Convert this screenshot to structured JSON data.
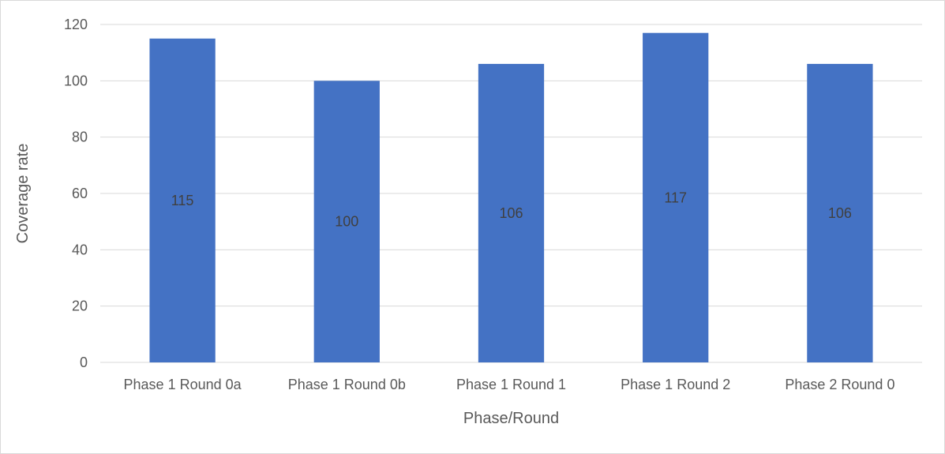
{
  "chart_data": {
    "type": "bar",
    "title": "",
    "xlabel": "Phase/Round",
    "ylabel": "Coverage rate",
    "categories": [
      "Phase 1 Round 0a",
      "Phase 1 Round 0b",
      "Phase 1 Round 1",
      "Phase 1 Round 2",
      "Phase 2 Round 0"
    ],
    "values": [
      115,
      100,
      106,
      117,
      106
    ],
    "data_labels": [
      "115",
      "100",
      "106",
      "117",
      "106"
    ],
    "ylim": [
      0,
      120
    ],
    "yticks": [
      0,
      20,
      40,
      60,
      80,
      100,
      120
    ],
    "ytick_labels": [
      "0",
      "20",
      "40",
      "60",
      "80",
      "100",
      "120"
    ],
    "grid": true,
    "legend": "none",
    "bar_color": "#4472C4",
    "grid_color": "#D9D9D9"
  }
}
